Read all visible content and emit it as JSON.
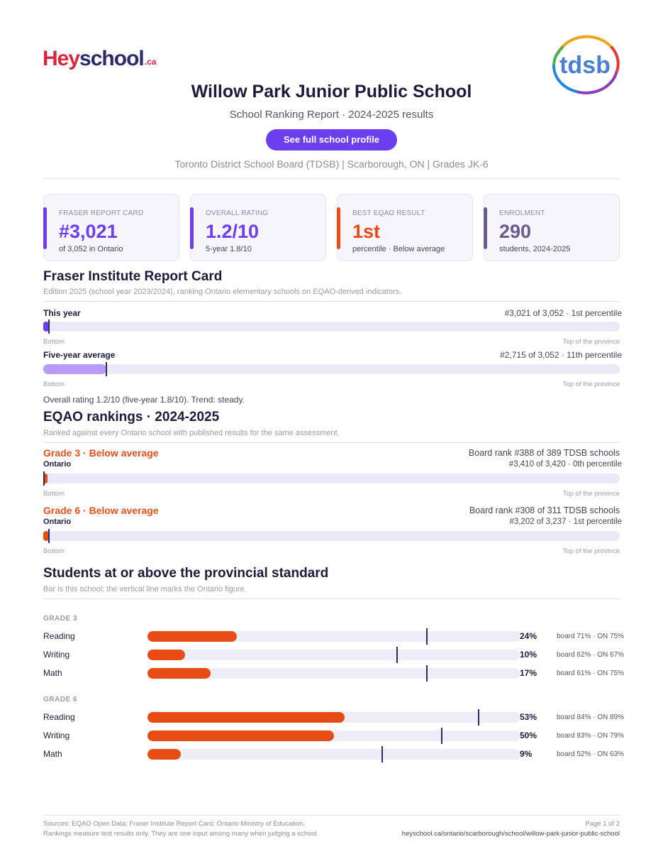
{
  "brand": {
    "left_logo": {
      "part1": "Hey",
      "part2": "school",
      "part3": ".ca"
    },
    "right_logo": {
      "text": "tdsb"
    },
    "colors": {
      "purple": "#6d3ef0",
      "lavender": "#b69cf7",
      "orange": "#e74c15",
      "slate": "#6a5c8f",
      "navy": "#2d2a6b"
    }
  },
  "header": {
    "title": "Willow Park Junior Public School",
    "subtitle": "School Ranking Report  ·  2024-2025 results",
    "cta_label": "See full school profile",
    "board_line": "Toronto District School Board (TDSB)  |  Scarborough, ON  |  Grades JK-6"
  },
  "cards": [
    {
      "label": "FRASER REPORT CARD",
      "value": "#3,021",
      "sub": "of 3,052 in Ontario"
    },
    {
      "label": "OVERALL RATING",
      "value": "1.2/10",
      "sub": "5-year 1.8/10"
    },
    {
      "label": "BEST EQAO RESULT",
      "value": "1st",
      "sub": "percentile  ·  Below average"
    },
    {
      "label": "ENROLMENT",
      "value": "290",
      "sub": "students, 2024-2025"
    }
  ],
  "fraser": {
    "heading": "Fraser Institute Report Card",
    "note": "Edition 2025 (school year 2023/2024), ranking Ontario elementary schools on EQAO-derived indicators.",
    "rows": [
      {
        "label": "This year",
        "rank_text": "#3,021 of 3,052  ·  1st percentile",
        "fill_fraction": 0.01,
        "marker_fraction": 0.01
      },
      {
        "label": "Five-year average",
        "rank_text": "#2,715 of 3,052  ·  11th percentile",
        "fill_fraction": 0.11,
        "marker_fraction": 0.11
      }
    ],
    "scale_left": "Bottom",
    "scale_right": "Top of the province",
    "summary": "Overall rating 1.2/10 (five-year 1.8/10). Trend: steady."
  },
  "eqao": {
    "heading": "EQAO rankings  ·  2024-2025",
    "note": "Ranked against every Ontario school with published results for the same assessment.",
    "grades": [
      {
        "title": "Grade 3  ·  Below average",
        "sub": "Ontario",
        "board_rank": "Board rank #388 of 389 TDSB schools",
        "prov_rank": "#3,410 of 3,420  ·  0th percentile",
        "fill_fraction": 0.005,
        "marker_fraction": 0.0
      },
      {
        "title": "Grade 6  ·  Below average",
        "sub": "Ontario",
        "board_rank": "Board rank #308 of 311 TDSB schools",
        "prov_rank": "#3,202 of 3,237  ·  1st percentile",
        "fill_fraction": 0.01,
        "marker_fraction": 0.01
      }
    ],
    "scale_left": "Bottom",
    "scale_right": "Top of the province"
  },
  "standards": {
    "heading": "Students at or above the provincial standard",
    "note": "Bar is this school; the vertical line marks the Ontario figure.",
    "groups": [
      {
        "label": "GRADE 3",
        "rows": [
          {
            "subject": "Reading",
            "school": 24,
            "board": 71,
            "ontario": 75,
            "pct": "24%",
            "cmp": "board 71%  ·  ON 75%"
          },
          {
            "subject": "Writing",
            "school": 10,
            "board": 62,
            "ontario": 67,
            "pct": "10%",
            "cmp": "board 62%  ·  ON 67%"
          },
          {
            "subject": "Math",
            "school": 17,
            "board": 61,
            "ontario": 75,
            "pct": "17%",
            "cmp": "board 61%  ·  ON 75%"
          }
        ]
      },
      {
        "label": "GRADE 6",
        "rows": [
          {
            "subject": "Reading",
            "school": 53,
            "board": 84,
            "ontario": 89,
            "pct": "53%",
            "cmp": "board 84%  ·  ON 89%"
          },
          {
            "subject": "Writing",
            "school": 50,
            "board": 83,
            "ontario": 79,
            "pct": "50%",
            "cmp": "board 83%  ·  ON 79%"
          },
          {
            "subject": "Math",
            "school": 9,
            "board": 52,
            "ontario": 63,
            "pct": "9%",
            "cmp": "board 52%  ·  ON 63%"
          }
        ]
      }
    ]
  },
  "footer": {
    "sources": "Sources: EQAO Open Data; Fraser Institute Report Card; Ontario Ministry of Education.",
    "disclaimer": "Rankings measure test results only. They are one input among many when judging a school.",
    "page": "Page 1 of 2",
    "url": "heyschool.ca/ontario/scarborough/school/willow-park-junior-public-school"
  }
}
